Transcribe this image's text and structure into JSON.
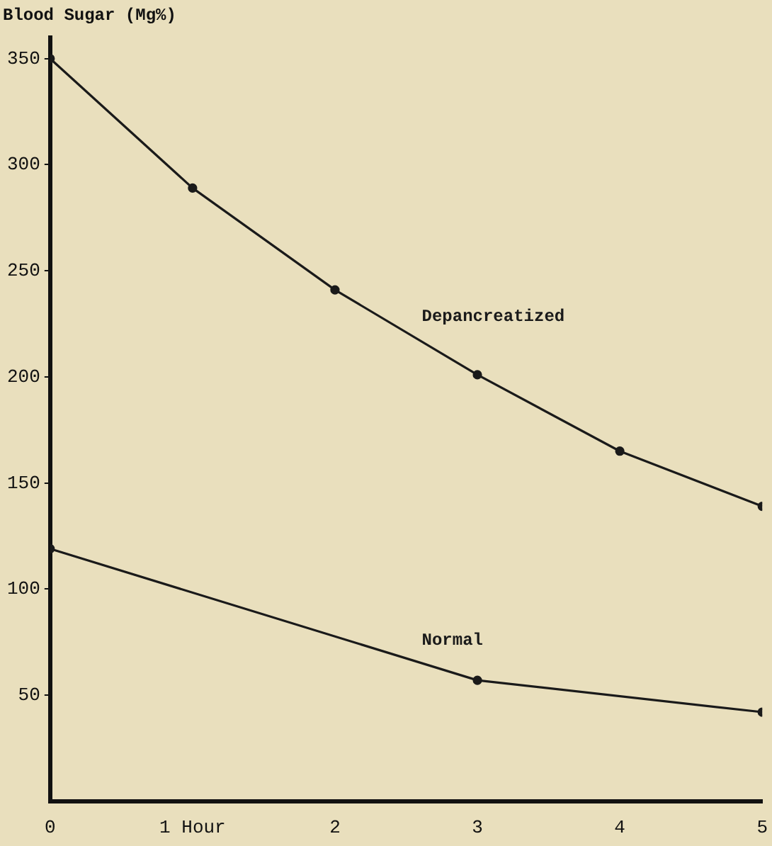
{
  "chart_data": {
    "type": "line",
    "ylabel": "Blood Sugar (Mg%)",
    "xlim": [
      0,
      5
    ],
    "xticks": [
      0,
      {
        "value": 1,
        "label": "1 Hour"
      },
      2,
      3,
      4,
      5
    ],
    "ylim": [
      0,
      360
    ],
    "yticks": [
      50,
      100,
      150,
      200,
      250,
      300,
      350
    ],
    "grid": false,
    "legend": false,
    "marker": "circle",
    "line_style": "solid",
    "series": [
      {
        "name": "Depancreatized",
        "color": "#1a1a1a",
        "x": [
          0,
          1,
          2,
          3,
          4,
          5
        ],
        "values": [
          350,
          289,
          241,
          201,
          165,
          139
        ]
      },
      {
        "name": "Normal",
        "color": "#1a1a1a",
        "x": [
          0,
          3,
          5
        ],
        "values": [
          119,
          57,
          42
        ]
      }
    ]
  }
}
